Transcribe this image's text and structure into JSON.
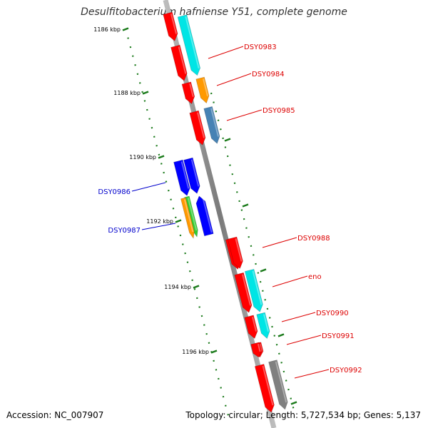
{
  "title": "Desulfitobacterium hafniense Y51, complete genome",
  "accession": "Accession: NC_007907",
  "topology": "Topology: circular; Length: 5,727,534 bp; Genes: 5,137",
  "colors": {
    "red": "#ff0000",
    "cyan": "#00e5e5",
    "orange": "#ff9900",
    "steel_blue": "#4682b4",
    "blue": "#0000ff",
    "green": "#33cc33",
    "grey": "#808080",
    "label_red": "#dd0000",
    "label_blue": "#0000cc",
    "tick_green": "#1a7a1a"
  },
  "ticks": [
    {
      "label": "1186 kbp"
    },
    {
      "label": "1188 kbp"
    },
    {
      "label": "1190 kbp"
    },
    {
      "label": "1192 kbp"
    },
    {
      "label": "1194 kbp"
    },
    {
      "label": "1196 kbp"
    }
  ],
  "genes": [
    {
      "name": "DSY0983",
      "color": "cyan"
    },
    {
      "name": "DSY0984",
      "color": "orange"
    },
    {
      "name": "DSY0985",
      "color": "steel_blue"
    },
    {
      "name": "DSY0986",
      "color": "blue"
    },
    {
      "name": "DSY0987",
      "color": "green"
    },
    {
      "name": "DSY0988",
      "color": "red"
    },
    {
      "name": "eno",
      "color": "cyan"
    },
    {
      "name": "DSY0990",
      "color": "cyan"
    },
    {
      "name": "DSY0991",
      "color": "red"
    },
    {
      "name": "DSY0992",
      "color": "grey"
    }
  ]
}
